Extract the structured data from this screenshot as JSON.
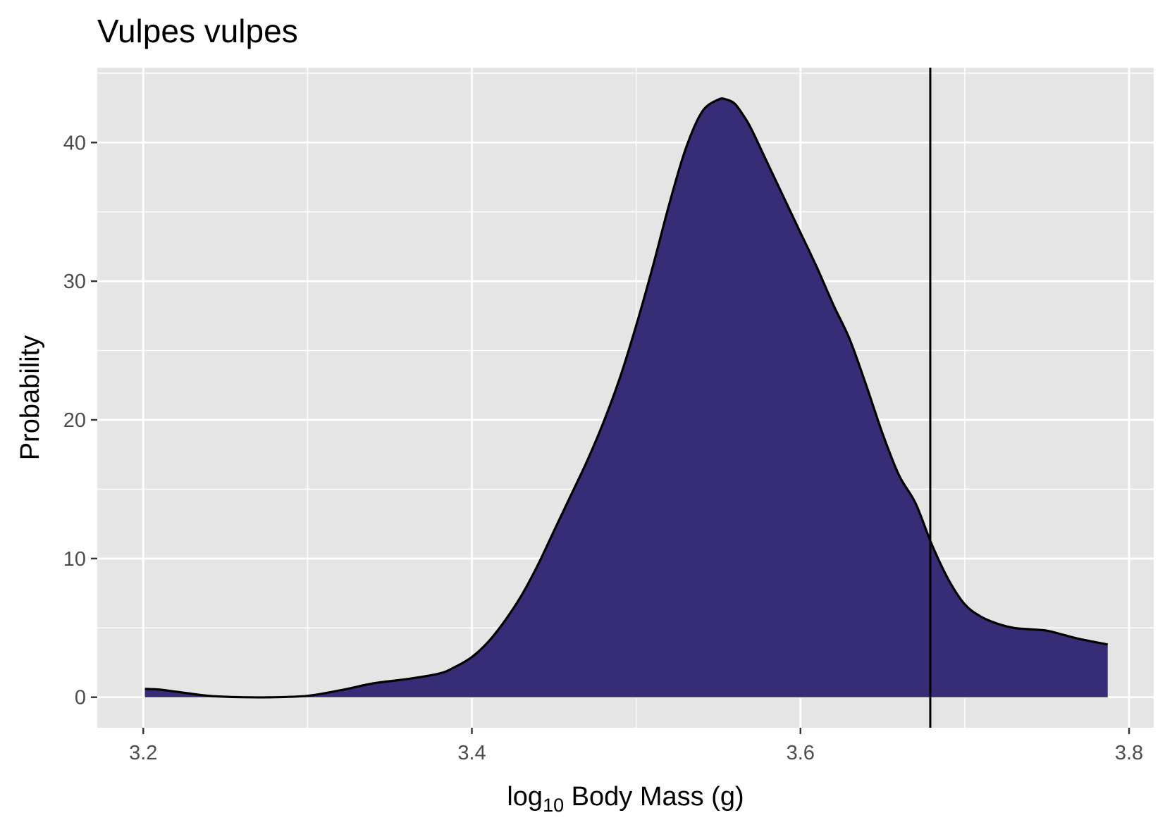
{
  "chart_data": {
    "type": "area",
    "title": "Vulpes vulpes",
    "xlabel_main": "log",
    "xlabel_sub": "10",
    "xlabel_rest": " Body Mass (g)",
    "ylabel": "Probability",
    "xlim": [
      3.172,
      3.815
    ],
    "ylim": [
      -2.2,
      45.4
    ],
    "x_ticks": [
      3.2,
      3.4,
      3.6,
      3.8
    ],
    "x_tick_labels": [
      "3.2",
      "3.4",
      "3.6",
      "3.8"
    ],
    "y_ticks": [
      0,
      10,
      20,
      30,
      40
    ],
    "y_tick_labels": [
      "0",
      "10",
      "20",
      "30",
      "40"
    ],
    "grid": true,
    "reference_line_x": 3.679,
    "fill_color": "#372c76",
    "line_color": "#000000",
    "panel_color": "#e5e5e5",
    "x": [
      3.201,
      3.21,
      3.22,
      3.24,
      3.26,
      3.28,
      3.3,
      3.32,
      3.34,
      3.36,
      3.38,
      3.39,
      3.4,
      3.41,
      3.42,
      3.43,
      3.44,
      3.45,
      3.46,
      3.47,
      3.48,
      3.49,
      3.5,
      3.51,
      3.52,
      3.53,
      3.54,
      3.55,
      3.555,
      3.56,
      3.565,
      3.57,
      3.58,
      3.59,
      3.6,
      3.61,
      3.62,
      3.63,
      3.64,
      3.65,
      3.66,
      3.67,
      3.68,
      3.69,
      3.7,
      3.71,
      3.72,
      3.73,
      3.74,
      3.75,
      3.76,
      3.77,
      3.787
    ],
    "y": [
      0.6,
      0.55,
      0.4,
      0.1,
      0.0,
      0.0,
      0.1,
      0.5,
      1.0,
      1.3,
      1.7,
      2.2,
      2.9,
      4.0,
      5.5,
      7.3,
      9.5,
      12.0,
      14.5,
      17.0,
      19.8,
      23.0,
      26.8,
      31.0,
      35.5,
      39.5,
      42.2,
      43.1,
      43.1,
      42.8,
      42.0,
      41.0,
      38.5,
      36.0,
      33.5,
      31.0,
      28.3,
      25.8,
      22.5,
      19.0,
      16.0,
      14.0,
      11.0,
      8.5,
      6.7,
      5.8,
      5.3,
      5.0,
      4.9,
      4.8,
      4.5,
      4.2,
      3.8
    ]
  }
}
